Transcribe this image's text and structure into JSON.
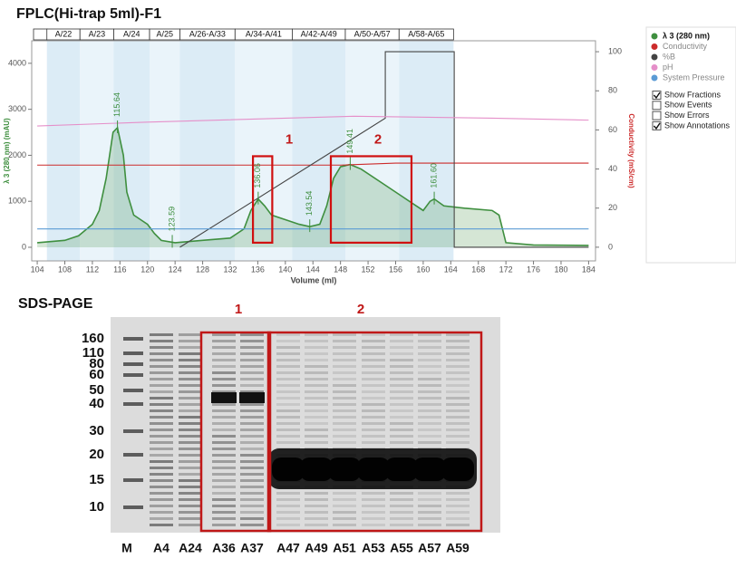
{
  "chart_data": {
    "type": "line",
    "title": "FPLC(Hi-trap 5ml)-F1",
    "x_label": "Volume (ml)",
    "y_label": "λ 3 (280 nm) (mAU)",
    "y2_label": "Conductivity (mS/cm)",
    "xlim": [
      103.2,
      185
    ],
    "xticks": [
      104,
      108,
      112,
      116,
      120,
      124,
      128,
      132,
      136,
      140,
      144,
      148,
      152,
      156,
      160,
      164,
      168,
      172,
      176,
      180,
      184
    ],
    "ylim": [
      -296,
      4490
    ],
    "yticks": [
      0,
      1000,
      2000,
      3000,
      4000
    ],
    "y2lim": [
      -7,
      105.6
    ],
    "y2ticks": [
      0,
      20,
      40,
      60,
      80,
      100
    ],
    "series": [
      {
        "name": "λ 3 (280 nm)",
        "color": "#3f8f3f",
        "x": [
          104,
          108,
          110,
          112,
          113,
          114,
          115,
          115.64,
          116.5,
          117,
          118,
          119,
          120,
          121,
          122,
          124,
          128,
          132,
          134,
          135,
          136.06,
          137,
          138,
          140,
          142,
          143.54,
          145,
          146,
          147,
          148,
          149.41,
          151,
          154,
          157,
          159,
          160,
          161,
          161.6,
          163,
          166,
          170,
          171,
          172,
          176,
          184
        ],
        "values": [
          100,
          150,
          250,
          500,
          800,
          1500,
          2500,
          2600,
          2000,
          1200,
          700,
          600,
          500,
          300,
          150,
          100,
          150,
          200,
          400,
          800,
          1050,
          900,
          700,
          600,
          500,
          450,
          500,
          900,
          1500,
          1750,
          1800,
          1700,
          1400,
          1100,
          900,
          800,
          1000,
          1050,
          900,
          850,
          800,
          700,
          100,
          50,
          40
        ]
      },
      {
        "name": "Conductivity",
        "color": "#cc2b2b",
        "axis": "y2",
        "x": [
          104,
          124,
          148,
          156,
          164,
          184
        ],
        "values": [
          42,
          42,
          42,
          43,
          43,
          43
        ]
      },
      {
        "name": "%B",
        "color": "#444444",
        "axis": "y2",
        "x": [
          124.7,
          154.5,
          154.5,
          164.5,
          164.5,
          184
        ],
        "values": [
          0,
          66,
          100,
          100,
          0,
          0
        ]
      },
      {
        "name": "pH",
        "color": "#e58fc9",
        "axis": "y2",
        "x": [
          104,
          120,
          140,
          150,
          170,
          184
        ],
        "values": [
          62,
          64,
          66,
          67,
          66,
          65
        ]
      },
      {
        "name": "System Pressure",
        "color": "#5b9bd5",
        "x": [
          104,
          184
        ],
        "values": [
          400,
          400
        ]
      }
    ],
    "fractions": [
      {
        "label": "A/22",
        "start": 105.4,
        "end": 110.2
      },
      {
        "label": "A/23",
        "start": 110.2,
        "end": 115.1
      },
      {
        "label": "A/24",
        "start": 115.1,
        "end": 120.3
      },
      {
        "label": "A/25",
        "start": 120.3,
        "end": 124.7
      },
      {
        "label": "A/26-A/33",
        "start": 124.7,
        "end": 132.7
      },
      {
        "label": "A/34-A/41",
        "start": 132.7,
        "end": 141.0
      },
      {
        "label": "A/42-A/49",
        "start": 141.0,
        "end": 148.7
      },
      {
        "label": "A/50-A/57",
        "start": 148.7,
        "end": 156.5
      },
      {
        "label": "A/58-A/65",
        "start": 156.5,
        "end": 164.4
      }
    ],
    "peaks": {
      "values": [
        115.64,
        123.59,
        136.06,
        143.54,
        149.41,
        161.6
      ],
      "value_labels": [
        "115.64",
        "123.59",
        "136.06",
        "143.54",
        "149.41",
        "161.60"
      ]
    },
    "regions": [
      {
        "label": "1",
        "x": [
          135.3,
          138.1
        ],
        "y": [
          100,
          1980
        ]
      },
      {
        "label": "2",
        "x": [
          146.6,
          158.3
        ],
        "y": [
          100,
          1980
        ]
      }
    ],
    "options": [
      {
        "label": "Show Fractions",
        "checked": true
      },
      {
        "label": "Show Events",
        "checked": false
      },
      {
        "label": "Show Errors",
        "checked": false
      },
      {
        "label": "Show Annotations",
        "checked": true
      }
    ]
  },
  "gel": {
    "title": "SDS-PAGE",
    "markers": [
      160,
      110,
      80,
      60,
      50,
      40,
      30,
      20,
      15,
      10
    ],
    "lanes": [
      "M",
      "A4",
      "A24",
      "A36",
      "A37",
      "A47",
      "A49",
      "A51",
      "A53",
      "A55",
      "A57",
      "A59"
    ],
    "groups": [
      "1",
      "2"
    ]
  }
}
